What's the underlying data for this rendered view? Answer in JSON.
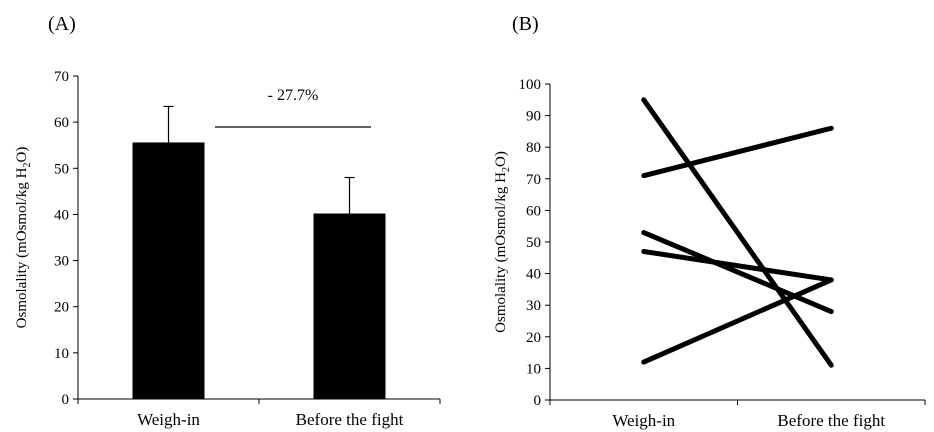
{
  "chart_data": [
    {
      "panel_label": "(A)",
      "type": "bar",
      "categories": [
        "Weigh-in",
        "Before the fight"
      ],
      "values": [
        55.6,
        40.2
      ],
      "error_upper": [
        63.4,
        48.0
      ],
      "ylabel": "Osmolality (mOsmol/kg H2O)",
      "ylabel_parts": [
        "Osmolality (mOsmol/kg H",
        "2",
        "O)"
      ],
      "ylim": [
        0,
        70
      ],
      "yticks": [
        0,
        10,
        20,
        30,
        40,
        50,
        60,
        70
      ],
      "annotation": "- 27.7%",
      "bar_color": "#000000",
      "grid": false
    },
    {
      "panel_label": "(B)",
      "type": "line",
      "categories": [
        "Weigh-in",
        "Before the fight"
      ],
      "series": [
        {
          "values": [
            95,
            11
          ]
        },
        {
          "values": [
            71,
            86
          ]
        },
        {
          "values": [
            53,
            28
          ]
        },
        {
          "values": [
            47,
            38
          ]
        },
        {
          "values": [
            12,
            38
          ]
        }
      ],
      "ylabel": "Osmolality (mOsmol/kg H2O)",
      "ylabel_parts": [
        "Osmolality (mOsmol/kg H",
        "2",
        "O)"
      ],
      "ylim": [
        0,
        100
      ],
      "yticks": [
        0,
        10,
        20,
        30,
        40,
        50,
        60,
        70,
        80,
        90,
        100
      ],
      "line_color": "#000000",
      "grid": false
    }
  ]
}
